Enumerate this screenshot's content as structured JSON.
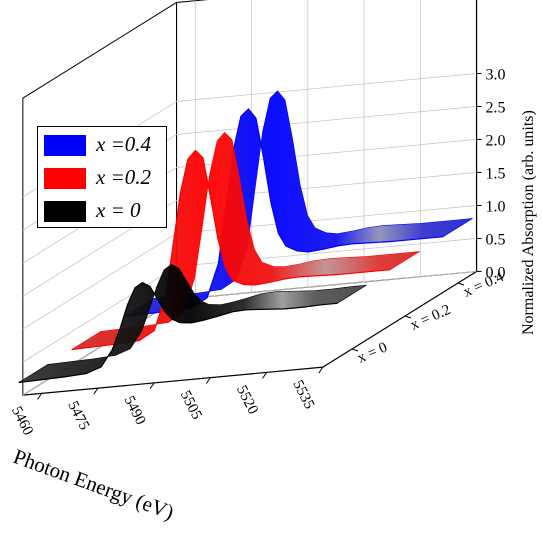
{
  "chart_data": {
    "type": "waterfall-3d",
    "title": "",
    "xlabel": "Photon Energy (eV)",
    "ylabel": "",
    "zlabel": "Normalized Absorption (arb. units)",
    "x_ticks": [
      "5460",
      "5475",
      "5490",
      "5505",
      "5520",
      "5535"
    ],
    "y_ticks": [
      "x = 0",
      "x = 0.2",
      "x = 0.4"
    ],
    "z_ticks": [
      "0.0",
      "0.5",
      "1.0",
      "1.5",
      "2.0",
      "2.5",
      "3.0"
    ],
    "xlim": [
      5455,
      5535
    ],
    "zlim": [
      0,
      3.2
    ],
    "grid": true,
    "legend_position": "upper-left",
    "series": [
      {
        "name": "x = 0",
        "legend_label": "x = 0",
        "depth_index": 0,
        "color": "#000000",
        "x": [
          5450,
          5462,
          5468,
          5472,
          5475,
          5477,
          5479,
          5481,
          5483,
          5485,
          5487,
          5489,
          5491,
          5493,
          5496,
          5499,
          5503,
          5507,
          5511,
          5516,
          5521,
          5526,
          5531,
          5535
        ],
        "values": [
          0.08,
          0.1,
          0.12,
          0.2,
          0.45,
          0.75,
          1.1,
          1.35,
          1.42,
          1.35,
          1.15,
          0.95,
          0.82,
          0.76,
          0.74,
          0.76,
          0.8,
          0.85,
          0.86,
          0.84,
          0.82,
          0.82,
          0.83,
          0.83
        ]
      },
      {
        "name": "x = 0.2",
        "legend_label": "x =0.2",
        "depth_index": 1,
        "color": "#ff0000",
        "x": [
          5450,
          5462,
          5468,
          5472,
          5475,
          5477,
          5479,
          5481,
          5483,
          5485,
          5487,
          5489,
          5491,
          5493,
          5496,
          5499,
          5503,
          5507,
          5511,
          5516,
          5521,
          5526,
          5531,
          5535
        ],
        "values": [
          0.08,
          0.1,
          0.12,
          0.25,
          0.75,
          1.5,
          2.3,
          2.8,
          2.92,
          2.8,
          2.2,
          1.55,
          1.1,
          0.9,
          0.82,
          0.8,
          0.82,
          0.85,
          0.86,
          0.85,
          0.84,
          0.84,
          0.84,
          0.84
        ]
      },
      {
        "name": "x = 0.4",
        "legend_label": "x =0.4",
        "depth_index": 2,
        "color": "#0000ff",
        "x": [
          5450,
          5462,
          5468,
          5472,
          5475,
          5477,
          5479,
          5481,
          5483,
          5485,
          5487,
          5489,
          5491,
          5493,
          5496,
          5499,
          5503,
          5507,
          5511,
          5516,
          5521,
          5526,
          5531,
          5535
        ],
        "values": [
          0.08,
          0.1,
          0.12,
          0.25,
          0.75,
          1.6,
          2.45,
          2.95,
          3.05,
          2.9,
          2.3,
          1.6,
          1.12,
          0.92,
          0.83,
          0.8,
          0.82,
          0.85,
          0.86,
          0.85,
          0.84,
          0.84,
          0.84,
          0.84
        ]
      }
    ]
  }
}
